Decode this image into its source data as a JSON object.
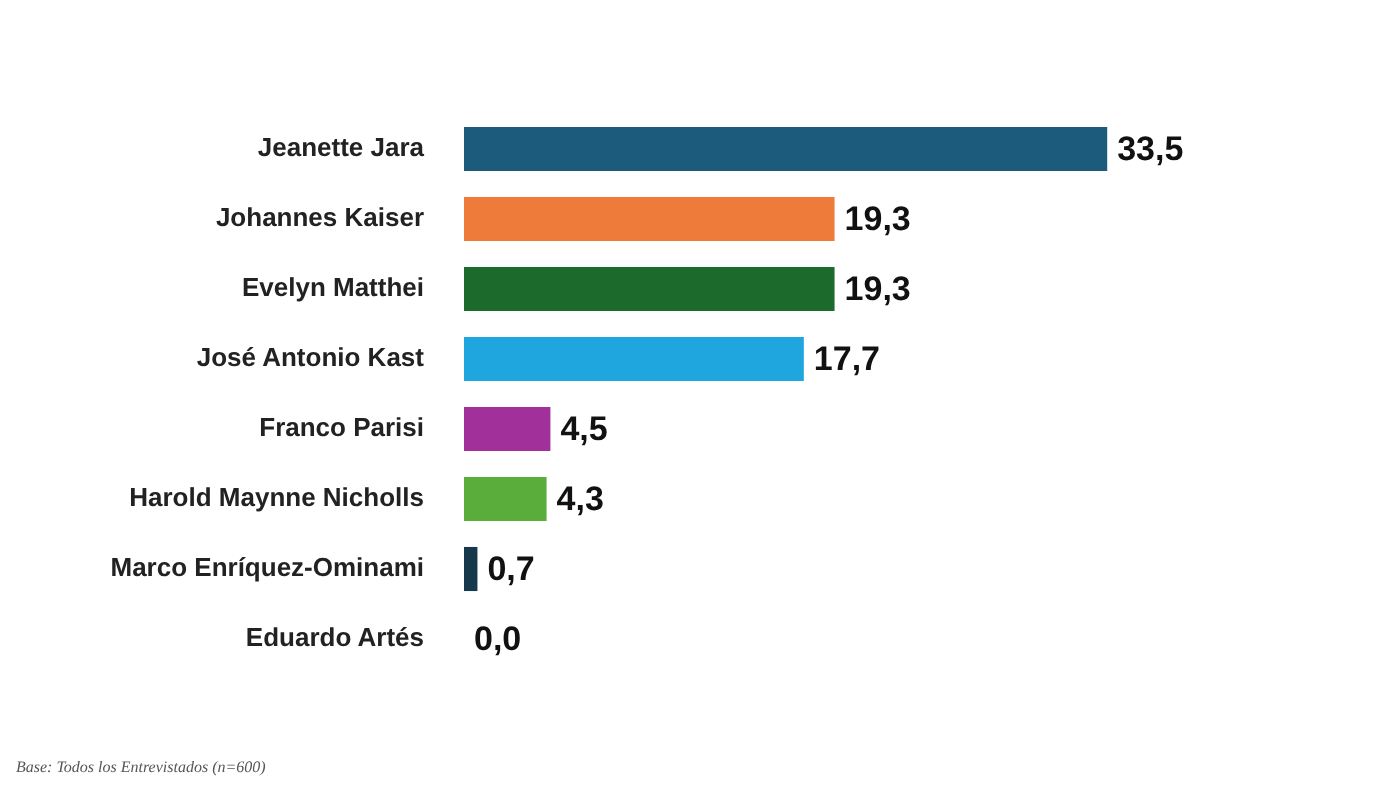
{
  "chart_data": {
    "type": "bar",
    "orientation": "horizontal",
    "categories": [
      "Jeanette Jara",
      "Johannes Kaiser",
      "Evelyn Matthei",
      "José Antonio Kast",
      "Franco Parisi",
      "Harold Maynne Nicholls",
      "Marco Enríquez-Ominami",
      "Eduardo Artés"
    ],
    "values": [
      33.5,
      19.3,
      19.3,
      17.7,
      4.5,
      4.3,
      0.7,
      0.0
    ],
    "colors": [
      "#1d5b7c",
      "#ef7b3b",
      "#1d6b2c",
      "#1fa6df",
      "#a1309b",
      "#5aad3b",
      "#16384b",
      "#16384b"
    ],
    "value_labels": [
      "33,5",
      "19,3",
      "19,3",
      "17,7",
      "4,5",
      "4,3",
      "0,7",
      "0,0"
    ],
    "legend": false,
    "annotations": [
      "Base: Todos los Entrevistados (n=600)"
    ]
  }
}
